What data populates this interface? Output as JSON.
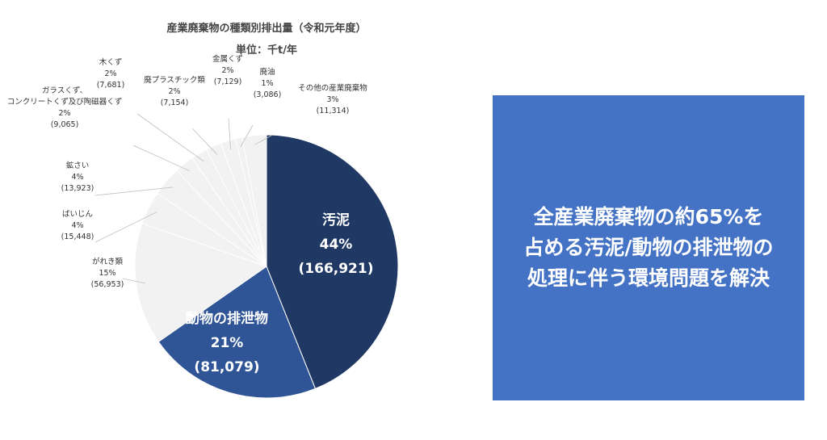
{
  "chart_data": {
    "type": "pie",
    "title": "産業廃棄物の種類別排出量（令和元年度）",
    "subtitle": "単位：千t/年",
    "start_angle_deg": 0,
    "direction": "clockwise",
    "slices": [
      {
        "name": "汚泥",
        "percent_label": "44%",
        "value": 166921,
        "value_label": "(166,921)",
        "color": "#203864",
        "label_color": "#ffffff",
        "label_inside": true
      },
      {
        "name": "動物の排泄物",
        "percent_label": "21%",
        "value": 81079,
        "value_label": "(81,079)",
        "color": "#2f5597",
        "label_color": "#ffffff",
        "label_inside": true
      },
      {
        "name": "がれき類",
        "percent_label": "15%",
        "value": 56953,
        "value_label": "(56,953)",
        "color": "#f2f2f2",
        "label_color": "#333333",
        "label_inside": false
      },
      {
        "name": "ばいじん",
        "percent_label": "4%",
        "value": 15448,
        "value_label": "(15,448)",
        "color": "#f2f2f2",
        "label_color": "#333333",
        "label_inside": false
      },
      {
        "name": "鉱さい",
        "percent_label": "4%",
        "value": 13923,
        "value_label": "(13,923)",
        "color": "#f2f2f2",
        "label_color": "#333333",
        "label_inside": false
      },
      {
        "name": "ガラスくず、\nコンクリートくず及び陶磁器くず",
        "percent_label": "2%",
        "value": 9065,
        "value_label": "(9,065)",
        "color": "#f2f2f2",
        "label_color": "#333333",
        "label_inside": false
      },
      {
        "name": "木くず",
        "percent_label": "2%",
        "value": 7681,
        "value_label": "(7,681)",
        "color": "#f2f2f2",
        "label_color": "#333333",
        "label_inside": false
      },
      {
        "name": "廃プラスチック類",
        "percent_label": "2%",
        "value": 7154,
        "value_label": "(7,154)",
        "color": "#f2f2f2",
        "label_color": "#333333",
        "label_inside": false
      },
      {
        "name": "金属くず",
        "percent_label": "2%",
        "value": 7129,
        "value_label": "(7,129)",
        "color": "#f2f2f2",
        "label_color": "#333333",
        "label_inside": false
      },
      {
        "name": "廃油",
        "percent_label": "1%",
        "value": 3086,
        "value_label": "(3,086)",
        "color": "#f2f2f2",
        "label_color": "#333333",
        "label_inside": false
      },
      {
        "name": "その他の産業廃棄物",
        "percent_label": "3%",
        "value": 11314,
        "value_label": "(11,314)",
        "color": "#f2f2f2",
        "label_color": "#333333",
        "label_inside": false
      }
    ]
  },
  "callout": {
    "text": "全産業廃棄物の約65%を\n占める汚泥/動物の排泄物の\n処理に伴う環境問題を解決",
    "background": "#4472c4",
    "color": "#ffffff"
  }
}
